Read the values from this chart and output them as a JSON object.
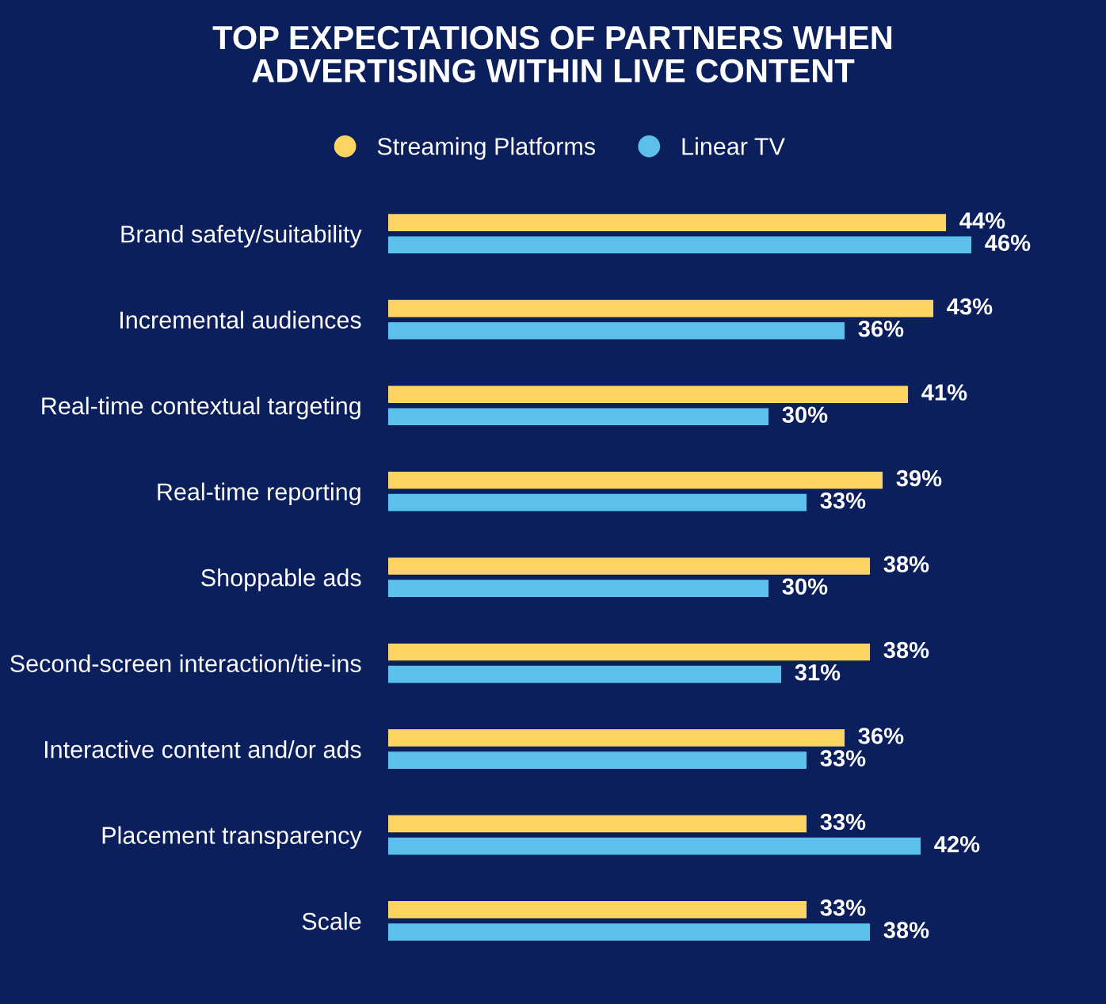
{
  "chart_data": {
    "type": "bar",
    "orientation": "horizontal",
    "title": "TOP EXPECTATIONS OF PARTNERS WHEN\nADVERTISING WITHIN LIVE CONTENT",
    "categories": [
      "Brand safety/suitability",
      "Incremental audiences",
      "Real-time contextual targeting",
      "Real-time reporting",
      "Shoppable ads",
      "Second-screen interaction/tie-ins",
      "Interactive content and/or ads",
      "Placement transparency",
      "Scale"
    ],
    "series": [
      {
        "name": "Streaming Platforms",
        "color": "#fcd462",
        "values": [
          44,
          43,
          41,
          39,
          38,
          38,
          36,
          33,
          33
        ],
        "value_labels": [
          "44%",
          "43%",
          "41%",
          "39%",
          "38%",
          "38%",
          "36%",
          "33%",
          "33%"
        ]
      },
      {
        "name": "Linear TV",
        "color": "#5bc0eb",
        "values": [
          46,
          36,
          30,
          33,
          30,
          31,
          33,
          42,
          38
        ],
        "value_labels": [
          "46%",
          "36%",
          "30%",
          "33%",
          "30%",
          "31%",
          "33%",
          "42%",
          "38%"
        ]
      }
    ],
    "legend": "top",
    "grid": false,
    "tick_labels": "y"
  }
}
